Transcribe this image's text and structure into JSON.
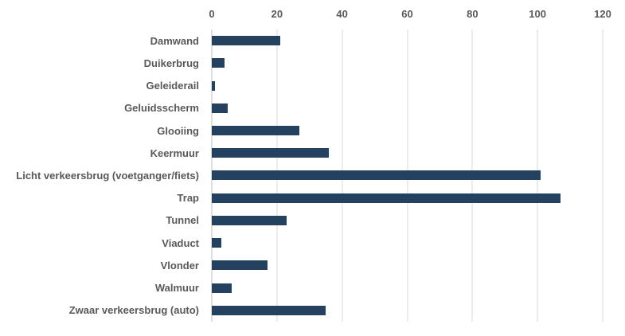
{
  "chart_data": {
    "type": "bar",
    "orientation": "horizontal",
    "title": "",
    "categories": [
      "Damwand",
      "Duikerbrug",
      "Geleiderail",
      "Geluidsscherm",
      "Glooiing",
      "Keermuur",
      "Licht verkeersbrug (voetganger/fiets)",
      "Trap",
      "Tunnel",
      "Viaduct",
      "Vlonder",
      "Walmuur",
      "Zwaar verkeersbrug (auto)"
    ],
    "values": [
      21,
      4,
      1,
      5,
      27,
      36,
      101,
      107,
      23,
      3,
      17,
      6,
      35
    ],
    "x_ticks": [
      "0",
      "20",
      "40",
      "60",
      "80",
      "100",
      "120"
    ],
    "x_tick_values": [
      0,
      20,
      40,
      60,
      80,
      100,
      120
    ],
    "xlim": [
      0,
      120
    ],
    "xlabel": "",
    "ylabel": "",
    "legend": "none",
    "grid": "vertical-gridlines-every-20",
    "axis_position": "top",
    "bar_color": "#24425F",
    "label_color": "#595959",
    "gridline_color": "#D9D9D9",
    "axis_line_color": "#BFBFBF",
    "background_color": "#FFFFFF"
  }
}
